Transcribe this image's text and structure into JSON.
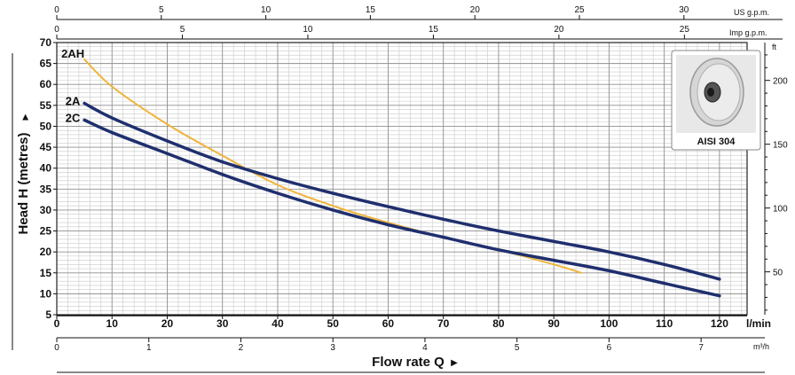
{
  "chart_data": {
    "type": "line",
    "ylabel": "Head H (metres)",
    "xlabel": "Flow rate Q",
    "x_unit": "l/min",
    "ylim": [
      5,
      70
    ],
    "xlim": [
      0,
      125
    ],
    "grid": true,
    "y_ticks": [
      5,
      10,
      15,
      20,
      25,
      30,
      35,
      40,
      45,
      50,
      55,
      60,
      65,
      70
    ],
    "x_ticks_lmin": [
      0,
      10,
      20,
      30,
      40,
      50,
      60,
      70,
      80,
      90,
      100,
      110,
      120
    ],
    "us_gpm_axis": {
      "label": "US g.p.m.",
      "ticks": [
        0,
        5,
        10,
        15,
        20,
        25,
        30
      ]
    },
    "imp_gpm_axis": {
      "label": "Imp g.p.m.",
      "ticks": [
        0,
        5,
        10,
        15,
        20,
        25
      ]
    },
    "m3h_axis": {
      "label": "m³/h",
      "ticks": [
        0,
        1,
        2,
        3,
        4,
        5,
        6,
        7
      ]
    },
    "right_axis": {
      "label": "ft",
      "ticks": [
        50,
        100,
        150,
        200
      ]
    },
    "series": [
      {
        "name": "2AH",
        "color": "#f0b43a",
        "x": [
          5,
          10,
          20,
          30,
          40,
          50,
          60,
          70,
          80,
          90,
          95
        ],
        "y": [
          66,
          59.5,
          50.5,
          43,
          36,
          31,
          27,
          23.5,
          20.5,
          17,
          15
        ]
      },
      {
        "name": "2A",
        "color": "#1f2f6e",
        "x": [
          5,
          10,
          20,
          30,
          40,
          50,
          60,
          70,
          80,
          90,
          100,
          110,
          120
        ],
        "y": [
          55.5,
          52,
          46.5,
          41.5,
          37.5,
          34,
          30.8,
          27.8,
          25,
          22.5,
          20,
          17,
          13.5
        ]
      },
      {
        "name": "2C",
        "color": "#1f2f6e",
        "x": [
          5,
          10,
          20,
          30,
          40,
          50,
          60,
          70,
          80,
          90,
          100,
          110,
          120
        ],
        "y": [
          51.5,
          48.5,
          43.5,
          38.5,
          34,
          30,
          26.5,
          23.5,
          20.5,
          18,
          15.5,
          12.5,
          9.5
        ]
      }
    ]
  },
  "image_caption": "AISI 304"
}
